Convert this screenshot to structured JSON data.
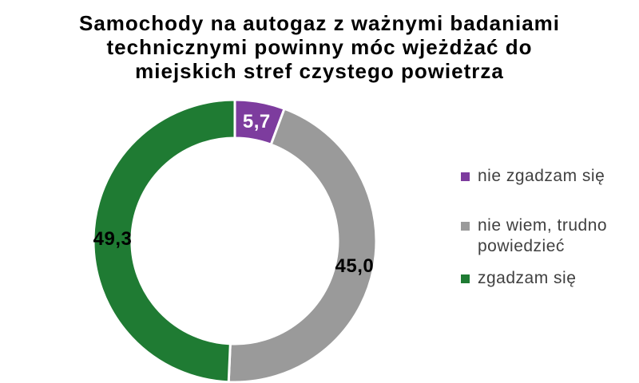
{
  "background": "#FFFFFF",
  "chart_data": {
    "type": "pie",
    "subtype": "donut",
    "title": "Samochody na autogaz z ważnymi badaniami technicznymi powinny móc wjeżdżać do miejskich stref czystego powietrza",
    "title_lines": [
      "Samochody na autogaz z ważnymi badaniami",
      "technicznymi powinny móc wjeżdżać do",
      "miejskich stref czystego powietrza"
    ],
    "unit": "percent",
    "direction": "clockwise",
    "start_angle_deg": 0,
    "hole_ratio": 0.73,
    "separator_color": "#FFFFFF",
    "legend_position": "right",
    "slices": [
      {
        "name": "nie zgadzam się",
        "value": 5.7,
        "label": "5,7",
        "color": "#7D3C9E",
        "label_color": "#FFFFFF"
      },
      {
        "name": "nie wiem, trudno powiedzieć",
        "value": 45.0,
        "label": "45,0",
        "color": "#9A9A9A",
        "label_color": "#000000"
      },
      {
        "name": "zgadzam się",
        "value": 49.3,
        "label": "49,3",
        "color": "#1F7B33",
        "label_color": "#000000"
      }
    ]
  }
}
